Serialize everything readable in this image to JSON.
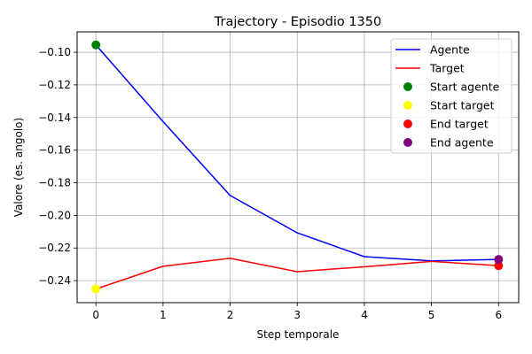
{
  "chart_data": {
    "type": "line",
    "title": "Trajectory - Episodio 1350",
    "xlabel": "Step temporale",
    "ylabel": "Valore (es. angolo)",
    "xlim": [
      -0.28,
      6.3
    ],
    "ylim": [
      -0.2535,
      -0.0875
    ],
    "xticks": [
      0,
      1,
      2,
      3,
      4,
      5,
      6
    ],
    "yticks": [
      -0.1,
      -0.12,
      -0.14,
      -0.16,
      -0.18,
      -0.2,
      -0.22,
      -0.24
    ],
    "ytick_labels": [
      "−0.10",
      "−0.12",
      "−0.14",
      "−0.16",
      "−0.18",
      "−0.20",
      "−0.22",
      "−0.24"
    ],
    "grid": true,
    "legend_position": "top-right",
    "series": [
      {
        "name": "Agente",
        "color": "#0000ff",
        "x": [
          0,
          1,
          2,
          3,
          4,
          5,
          6
        ],
        "y": [
          -0.0955,
          -0.1425,
          -0.1878,
          -0.2107,
          -0.2253,
          -0.2279,
          -0.227
        ]
      },
      {
        "name": "Target",
        "color": "#ff0000",
        "x": [
          0,
          1,
          2,
          3,
          4,
          5,
          6
        ],
        "y": [
          -0.2451,
          -0.2312,
          -0.2263,
          -0.2345,
          -0.2315,
          -0.2282,
          -0.2308
        ]
      }
    ],
    "markers": [
      {
        "name": "Start agente",
        "color": "#008000",
        "x": 0,
        "y": -0.0955
      },
      {
        "name": "Start target",
        "color": "#ffff00",
        "x": 0,
        "y": -0.2451
      },
      {
        "name": "End target",
        "color": "#ff0000",
        "x": 6,
        "y": -0.2308
      },
      {
        "name": "End agente",
        "color": "#800080",
        "x": 6,
        "y": -0.227
      }
    ]
  }
}
